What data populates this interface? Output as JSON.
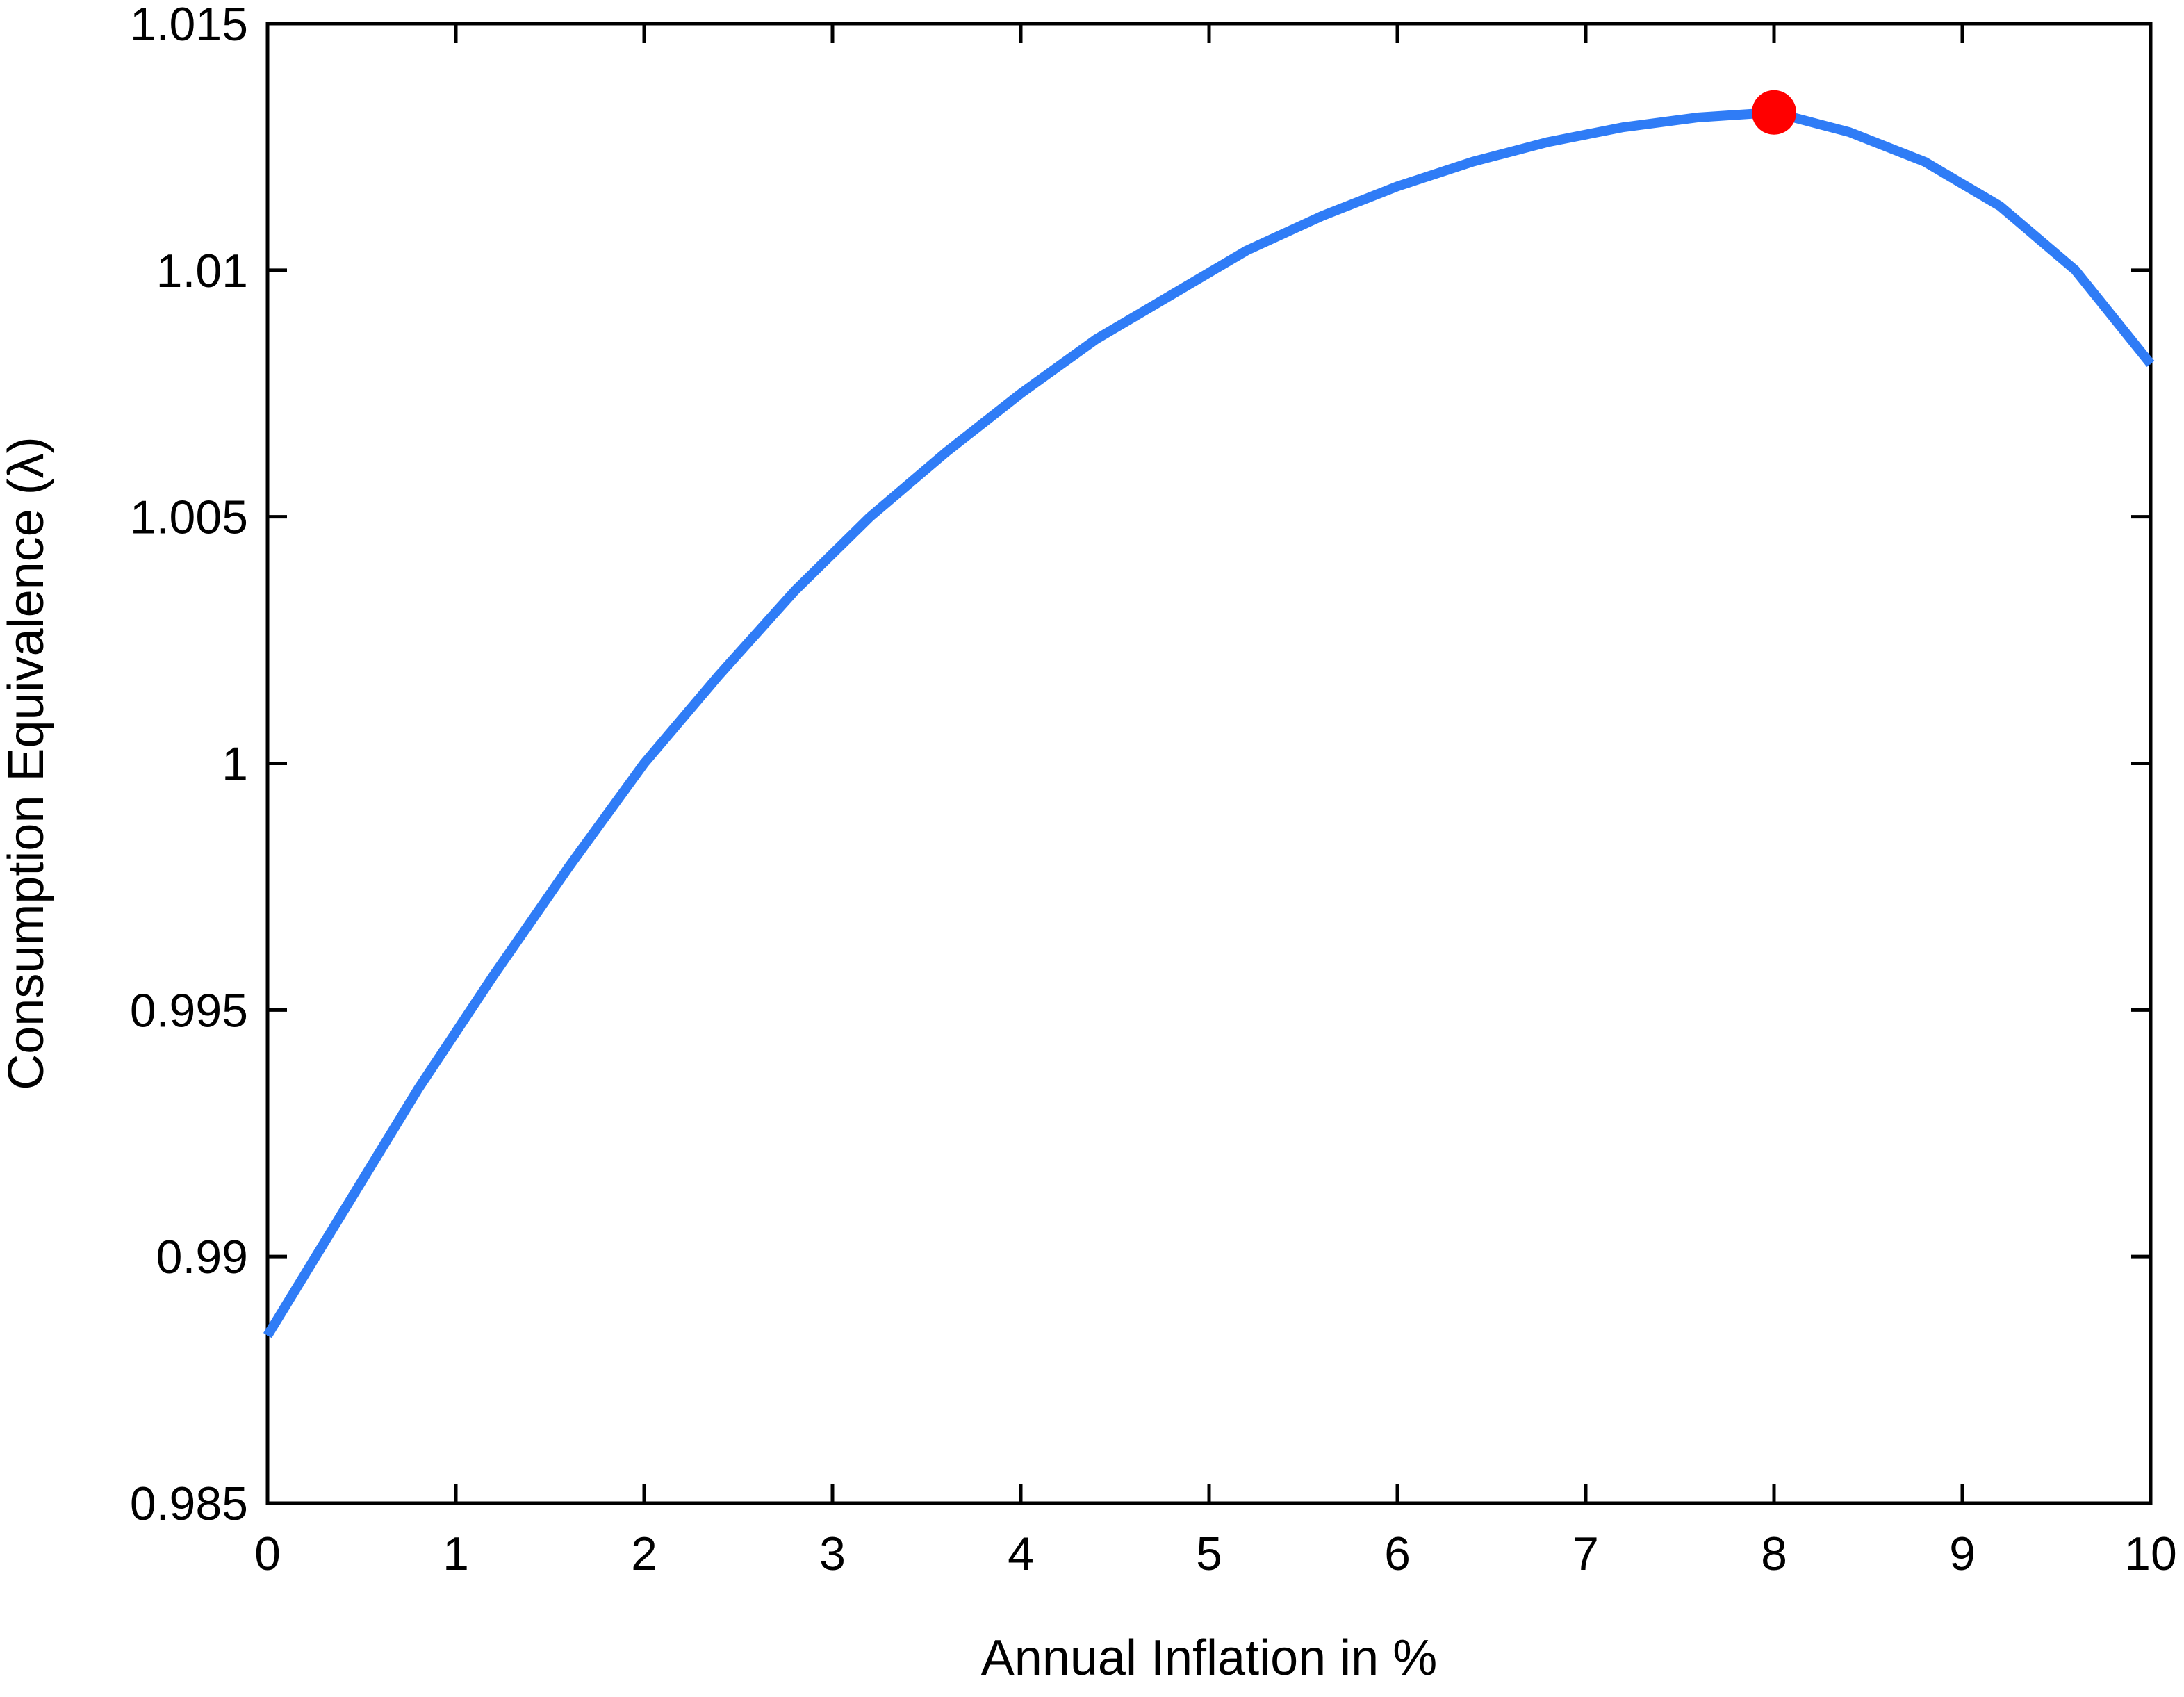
{
  "chart_data": {
    "type": "line",
    "title": "",
    "xlabel": "Annual Inflation in %",
    "ylabel": "Consumption Equivalence (λ)",
    "xlim": [
      0,
      10
    ],
    "ylim": [
      0.985,
      1.015
    ],
    "x_ticks": [
      "0",
      "1",
      "2",
      "3",
      "4",
      "5",
      "6",
      "7",
      "8",
      "9",
      "10"
    ],
    "y_ticks": [
      "0.985",
      "0.99",
      "0.995",
      "1",
      "1.005",
      "1.01",
      "1.015"
    ],
    "grid": false,
    "colors": {
      "line": "#2f7cf6",
      "marker": "#ff0000",
      "axes": "#000000"
    },
    "series": [
      {
        "x": [
          0,
          0.4,
          0.8,
          1.2,
          1.6,
          2.0,
          2.4,
          2.8,
          3.2,
          3.6,
          4.0,
          4.4,
          4.8,
          5.2,
          5.6,
          6.0,
          6.4,
          6.8,
          7.2,
          7.6,
          8.0,
          8.4,
          8.8,
          9.2,
          9.6,
          10.0
        ],
        "values": [
          0.9884,
          0.9909,
          0.9934,
          0.9957,
          0.9979,
          1.0,
          1.0018,
          1.0035,
          1.005,
          1.0063,
          1.0075,
          1.0086,
          1.0095,
          1.0104,
          1.0111,
          1.0117,
          1.0122,
          1.0126,
          1.0129,
          1.0131,
          1.0132,
          1.0128,
          1.0122,
          1.0113,
          1.01,
          1.0081
        ]
      }
    ],
    "highlight_point": {
      "x": 8.0,
      "y": 1.0132
    }
  }
}
